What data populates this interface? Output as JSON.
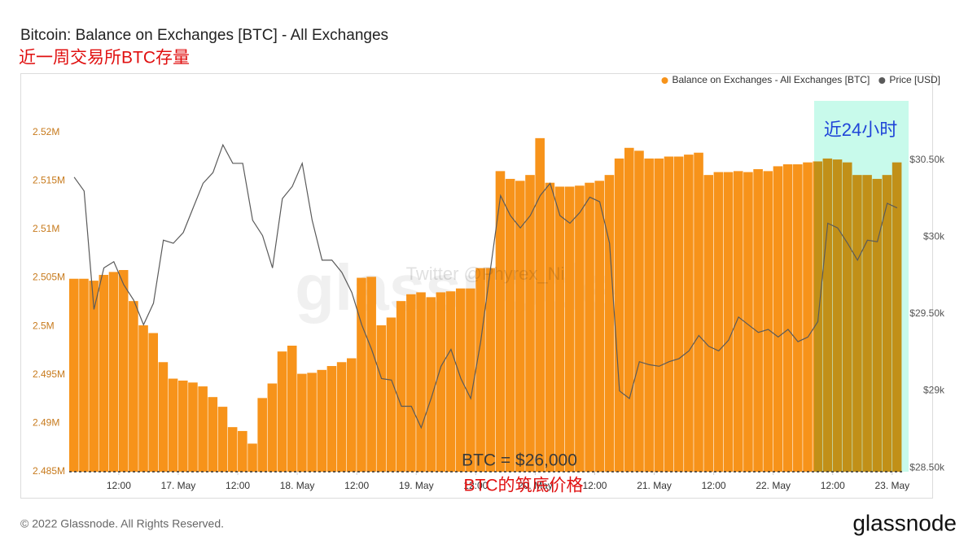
{
  "chart_data": {
    "type": "combo",
    "title": "Bitcoin: Balance on Exchanges [BTC] - All Exchanges",
    "subtitle": "近一周交易所BTC存量",
    "x": [
      3,
      5,
      7,
      9,
      11,
      13,
      15,
      17,
      19,
      21,
      23,
      25,
      27,
      29,
      31,
      33,
      35,
      37,
      39,
      41,
      43,
      45,
      47,
      49,
      51,
      53,
      55,
      57,
      59,
      61,
      63,
      65,
      67,
      69,
      71,
      73,
      75,
      77,
      79,
      81,
      83,
      85,
      87,
      89,
      91,
      93,
      95,
      97,
      99,
      101,
      103,
      105,
      107,
      109,
      111,
      113,
      115,
      117,
      119,
      121,
      123,
      125,
      127,
      129,
      131,
      133,
      135,
      137,
      139,
      141,
      143,
      145,
      147,
      149,
      151,
      153,
      155,
      157,
      159,
      161,
      163,
      165,
      167,
      169
    ],
    "xlim": [
      2,
      170
    ],
    "xticks": [
      {
        "value": 12,
        "label": "12:00"
      },
      {
        "value": 24,
        "label": "17. May"
      },
      {
        "value": 36,
        "label": "12:00"
      },
      {
        "value": 48,
        "label": "18. May"
      },
      {
        "value": 60,
        "label": "12:00"
      },
      {
        "value": 72,
        "label": "19. May"
      },
      {
        "value": 84,
        "label": "12:00"
      },
      {
        "value": 96,
        "label": "20. May"
      },
      {
        "value": 108,
        "label": "12:00"
      },
      {
        "value": 120,
        "label": "21. May"
      },
      {
        "value": 132,
        "label": "12:00"
      },
      {
        "value": 144,
        "label": "22. May"
      },
      {
        "value": 156,
        "label": "12:00"
      },
      {
        "value": 168,
        "label": "23. May"
      }
    ],
    "ylim": [
      2485000,
      2524000
    ],
    "yticks": [
      {
        "value": 2485000,
        "label": "2.485M"
      },
      {
        "value": 2490000,
        "label": "2.49M"
      },
      {
        "value": 2495000,
        "label": "2.495M"
      },
      {
        "value": 2500000,
        "label": "2.5M"
      },
      {
        "value": 2505000,
        "label": "2.505M"
      },
      {
        "value": 2510000,
        "label": "2.51M"
      },
      {
        "value": 2515000,
        "label": "2.515M"
      },
      {
        "value": 2520000,
        "label": "2.52M"
      }
    ],
    "y2lim": [
      28474,
      30934
    ],
    "y2ticks": [
      {
        "value": 28500,
        "label": "$28.50k"
      },
      {
        "value": 29000,
        "label": "$29k"
      },
      {
        "value": 29500,
        "label": "$29.50k"
      },
      {
        "value": 30000,
        "label": "$30k"
      },
      {
        "value": 30500,
        "label": "$30.50k"
      }
    ],
    "legend": "top-right",
    "series": [
      {
        "name": "Balance on Exchanges - All Exchanges [BTC]",
        "type": "bar",
        "axis": "y",
        "color": "#f7931a",
        "values": [
          2504900,
          2504900,
          2504700,
          2505300,
          2505600,
          2505800,
          2502600,
          2500100,
          2499300,
          2496300,
          2494600,
          2494400,
          2494200,
          2493800,
          2492700,
          2491700,
          2489600,
          2489200,
          2487900,
          2492600,
          2494100,
          2497400,
          2498000,
          2495100,
          2495200,
          2495500,
          2495900,
          2496300,
          2496700,
          2505000,
          2505100,
          2500100,
          2500900,
          2502600,
          2503300,
          2503500,
          2503000,
          2503500,
          2503600,
          2503900,
          2503900,
          2506000,
          2506000,
          2516000,
          2515200,
          2515000,
          2515600,
          2519400,
          2514800,
          2514400,
          2514400,
          2514500,
          2514800,
          2515000,
          2515600,
          2517300,
          2518400,
          2518100,
          2517300,
          2517300,
          2517500,
          2517500,
          2517700,
          2517900,
          2515600,
          2515900,
          2515900,
          2516000,
          2515900,
          2516200,
          2516000,
          2516500,
          2516700,
          2516700,
          2516900,
          2517000,
          2517300,
          2517200,
          2516900,
          2515600,
          2515600,
          2515200,
          2515600,
          2516900
        ]
      },
      {
        "name": "Price [USD]",
        "type": "line",
        "axis": "y2",
        "color": "#5a5a5a",
        "values": [
          30390,
          30300,
          29530,
          29800,
          29840,
          29690,
          29590,
          29430,
          29570,
          29980,
          29960,
          30030,
          30190,
          30350,
          30420,
          30600,
          30480,
          30480,
          30110,
          30010,
          29800,
          30250,
          30330,
          30480,
          30110,
          29850,
          29850,
          29770,
          29640,
          29430,
          29270,
          29080,
          29070,
          28900,
          28900,
          28760,
          28950,
          29160,
          29270,
          29080,
          28950,
          29320,
          29800,
          30270,
          30140,
          30060,
          30140,
          30270,
          30350,
          30140,
          30090,
          30160,
          30260,
          30230,
          29960,
          29000,
          28950,
          29190,
          29170,
          29160,
          29190,
          29210,
          29260,
          29360,
          29290,
          29260,
          29330,
          29480,
          29430,
          29380,
          29400,
          29350,
          29400,
          29320,
          29350,
          29450,
          30090,
          30060,
          29960,
          29850,
          29980,
          29970,
          30220,
          30190
        ]
      }
    ],
    "annotations": [
      {
        "text": "近24小时",
        "color": "#1f44d8"
      },
      {
        "text": "BTC = $26,000",
        "color": "#3a3a3a"
      },
      {
        "text": "BTC的筑底价格",
        "color": "#e01010"
      }
    ],
    "watermarks": [
      "glassnode",
      "Twitter @Phyrex_Ni"
    ],
    "copyright": "© 2022 Glassnode. All Rights Reserved.",
    "logo": "glassnode"
  }
}
